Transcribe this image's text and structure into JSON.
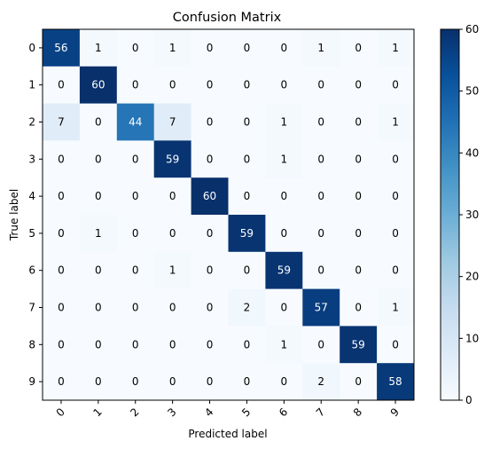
{
  "chart_data": {
    "type": "heatmap",
    "title": "Confusion Matrix",
    "xlabel": "Predicted label",
    "ylabel": "True label",
    "x_categories": [
      "0",
      "1",
      "2",
      "3",
      "4",
      "5",
      "6",
      "7",
      "8",
      "9"
    ],
    "y_categories": [
      "0",
      "1",
      "2",
      "3",
      "4",
      "5",
      "6",
      "7",
      "8",
      "9"
    ],
    "matrix": [
      [
        56,
        1,
        0,
        1,
        0,
        0,
        0,
        1,
        0,
        1
      ],
      [
        0,
        60,
        0,
        0,
        0,
        0,
        0,
        0,
        0,
        0
      ],
      [
        7,
        0,
        44,
        7,
        0,
        0,
        1,
        0,
        0,
        1
      ],
      [
        0,
        0,
        0,
        59,
        0,
        0,
        1,
        0,
        0,
        0
      ],
      [
        0,
        0,
        0,
        0,
        60,
        0,
        0,
        0,
        0,
        0
      ],
      [
        0,
        1,
        0,
        0,
        0,
        59,
        0,
        0,
        0,
        0
      ],
      [
        0,
        0,
        0,
        1,
        0,
        0,
        59,
        0,
        0,
        0
      ],
      [
        0,
        0,
        0,
        0,
        0,
        2,
        0,
        57,
        0,
        1
      ],
      [
        0,
        0,
        0,
        0,
        0,
        0,
        1,
        0,
        59,
        0
      ],
      [
        0,
        0,
        0,
        0,
        0,
        0,
        0,
        2,
        0,
        58
      ]
    ],
    "colormap": "Blues",
    "colorbar": {
      "range": [
        0,
        60
      ],
      "ticks": [
        "0",
        "10",
        "20",
        "30",
        "40",
        "50",
        "60"
      ]
    },
    "x_tick_rotation": "45deg"
  }
}
